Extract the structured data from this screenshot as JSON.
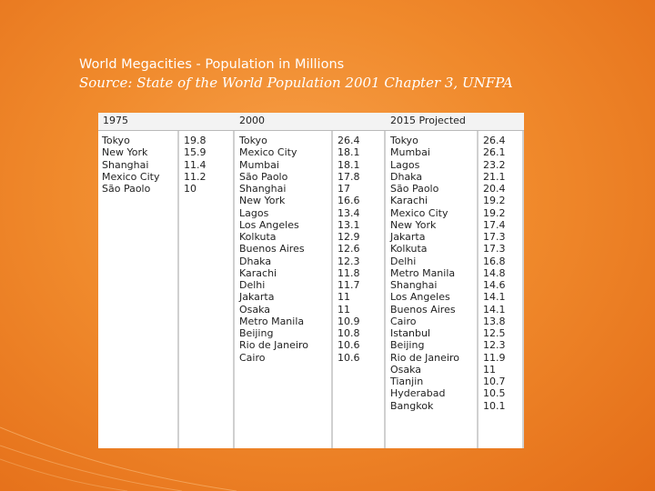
{
  "slide": {
    "title": "World Megacities - Population in Millions",
    "subtitle": "Source: State of the World Population 2001 Chapter 3,  UNFPA"
  },
  "table": {
    "headers": [
      "1975",
      "2000",
      "2015 Projected"
    ],
    "col1975": {
      "cities": [
        "Tokyo",
        "New York",
        "Shanghai",
        "Mexico City",
        "São Paolo"
      ],
      "values": [
        "19.8",
        "15.9",
        "11.4",
        "11.2",
        "10"
      ]
    },
    "col2000": {
      "cities": [
        "Tokyo",
        "Mexico City",
        "Mumbai",
        "São Paolo",
        "Shanghai",
        "New York",
        "Lagos",
        "Los Angeles",
        "Kolkuta",
        "Buenos Aires",
        "Dhaka",
        "Karachi",
        "Delhi",
        "Jakarta",
        "Osaka",
        "Metro Manila",
        "Beijing",
        "Rio de Janeiro",
        "Cairo"
      ],
      "values": [
        "26.4",
        "18.1",
        "18.1",
        "17.8",
        "17",
        "16.6",
        "13.4",
        "13.1",
        "12.9",
        "12.6",
        "12.3",
        "11.8",
        "11.7",
        "11",
        "11",
        "10.9",
        "10.8",
        "10.6",
        "10.6"
      ]
    },
    "col2015": {
      "cities": [
        "Tokyo",
        "Mumbai",
        "Lagos",
        "Dhaka",
        "São Paolo",
        "Karachi",
        "Mexico City",
        "New York",
        "Jakarta",
        "Kolkuta",
        "Delhi",
        "Metro Manila",
        "Shanghai",
        "Los Angeles",
        "Buenos Aires",
        "Cairo",
        "Istanbul",
        "Beijing",
        "Rio de Janeiro",
        "Osaka",
        "Tianjin",
        "Hyderabad",
        "Bangkok"
      ],
      "values": [
        "26.4",
        "26.1",
        "23.2",
        "21.1",
        "20.4",
        "19.2",
        "19.2",
        "17.4",
        "17.3",
        "17.3",
        "16.8",
        "14.8",
        "14.6",
        "14.1",
        "14.1",
        "13.8",
        "12.5",
        "12.3",
        "11.9",
        "11",
        "10.7",
        "10.5",
        "10.1"
      ]
    }
  }
}
